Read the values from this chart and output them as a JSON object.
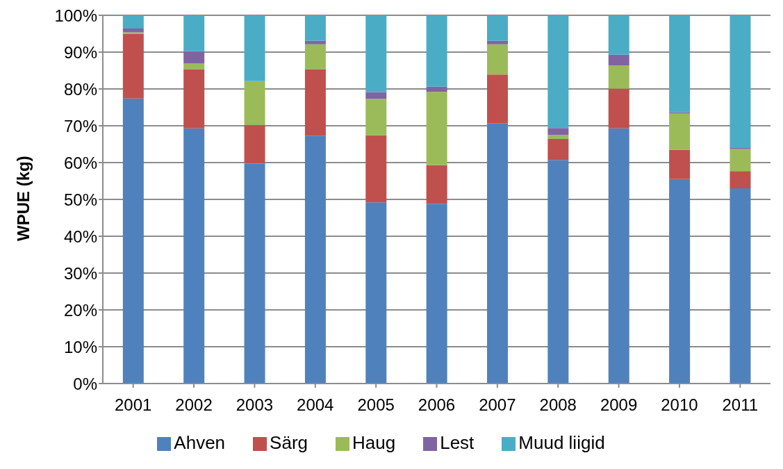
{
  "chart_data": {
    "type": "bar",
    "stacked": true,
    "ylabel": "WPUE (kg)",
    "categories": [
      "2001",
      "2002",
      "2003",
      "2004",
      "2005",
      "2006",
      "2007",
      "2008",
      "2009",
      "2010",
      "2011"
    ],
    "series": [
      {
        "name": "Ahven",
        "color": "#4f81bd",
        "values": [
          77.4,
          69.3,
          59.7,
          67.3,
          49.2,
          48.8,
          70.7,
          60.7,
          69.3,
          55.5,
          53.0
        ]
      },
      {
        "name": "Särg",
        "color": "#c0504d",
        "values": [
          17.6,
          16.1,
          10.5,
          18.1,
          18.2,
          10.5,
          13.2,
          5.7,
          10.8,
          8.0,
          4.7
        ]
      },
      {
        "name": "Haug",
        "color": "#9bbb59",
        "values": [
          0.4,
          1.5,
          11.9,
          6.7,
          9.9,
          19.9,
          8.2,
          1.1,
          6.3,
          9.8,
          6.0
        ]
      },
      {
        "name": "Lest",
        "color": "#8064a2",
        "values": [
          1.0,
          3.4,
          0,
          1.0,
          1.8,
          1.4,
          1.0,
          1.9,
          2.9,
          0.4,
          0.4
        ]
      },
      {
        "name": "Muud liigid",
        "color": "#4bacc6",
        "values": [
          3.6,
          9.7,
          17.9,
          6.9,
          20.9,
          19.4,
          6.9,
          30.6,
          10.7,
          26.3,
          35.9
        ]
      }
    ],
    "ylim": [
      0,
      100
    ],
    "yticks": [
      {
        "value": 0,
        "label": "0%"
      },
      {
        "value": 10,
        "label": "10%"
      },
      {
        "value": 20,
        "label": "20%"
      },
      {
        "value": 30,
        "label": "30%"
      },
      {
        "value": 40,
        "label": "40%"
      },
      {
        "value": 50,
        "label": "50%"
      },
      {
        "value": 60,
        "label": "60%"
      },
      {
        "value": 70,
        "label": "70%"
      },
      {
        "value": 80,
        "label": "80%"
      },
      {
        "value": 90,
        "label": "90%"
      },
      {
        "value": 100,
        "label": "100%"
      }
    ],
    "grid": "y",
    "legend": "bottom"
  }
}
